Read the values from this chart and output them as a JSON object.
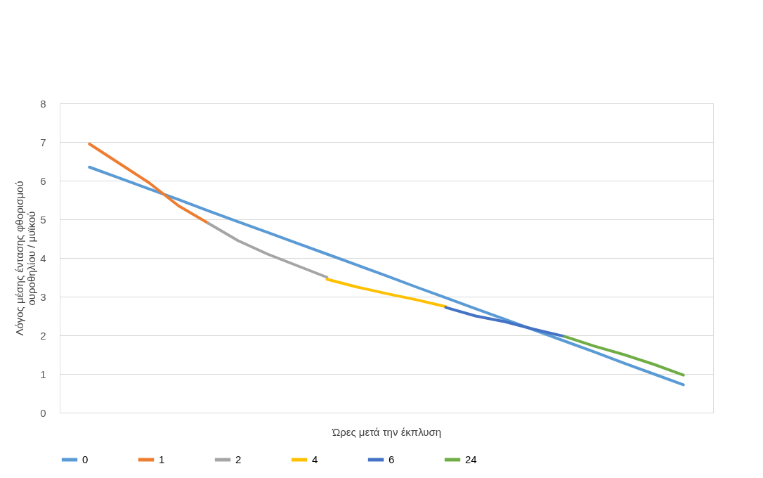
{
  "chart_data": {
    "type": "line",
    "xlabel": "Ώρες μετά την έκπλυση",
    "ylabel": "Λόγος μέσης έντασης φθορισμού\nουροθηλίου / μυϊκού",
    "categories": [
      null,
      null,
      null,
      null,
      null,
      null,
      null,
      null,
      null,
      null,
      null,
      null,
      null,
      null,
      null,
      null,
      null,
      null,
      null,
      null,
      null
    ],
    "series": [
      {
        "name": "0",
        "color": "#5b9bd5",
        "values": [
          6.35,
          6.07,
          5.79,
          5.51,
          5.22,
          4.94,
          4.66,
          4.38,
          4.1,
          3.82,
          3.54,
          3.25,
          2.97,
          2.69,
          2.41,
          2.13,
          1.85,
          1.57,
          1.28,
          1.0,
          0.72
        ]
      },
      {
        "name": "1",
        "color": "#ed7d31",
        "values": [
          6.95,
          6.45,
          5.95,
          5.35,
          4.9,
          null,
          null,
          null,
          null,
          null,
          null,
          null,
          null,
          null,
          null,
          null,
          null,
          null,
          null,
          null,
          null
        ]
      },
      {
        "name": "2",
        "color": "#a5a5a5",
        "values": [
          null,
          null,
          null,
          null,
          4.9,
          4.45,
          4.1,
          3.8,
          3.5,
          null,
          null,
          null,
          null,
          null,
          null,
          null,
          null,
          null,
          null,
          null,
          null
        ]
      },
      {
        "name": "4",
        "color": "#ffc000",
        "values": [
          null,
          null,
          null,
          null,
          null,
          null,
          null,
          null,
          3.45,
          3.25,
          3.08,
          2.92,
          2.74,
          null,
          null,
          null,
          null,
          null,
          null,
          null,
          null
        ]
      },
      {
        "name": "6",
        "color": "#4472c4",
        "values": [
          null,
          null,
          null,
          null,
          null,
          null,
          null,
          null,
          null,
          null,
          null,
          null,
          2.72,
          2.5,
          2.35,
          2.15,
          1.97,
          null,
          null,
          null,
          null
        ]
      },
      {
        "name": "24",
        "color": "#70ad47",
        "values": [
          null,
          null,
          null,
          null,
          null,
          null,
          null,
          null,
          null,
          null,
          null,
          null,
          null,
          null,
          null,
          null,
          1.97,
          1.72,
          1.5,
          1.25,
          0.97
        ]
      }
    ],
    "ylim": [
      0,
      8
    ],
    "yticks": [
      0,
      1,
      2,
      3,
      4,
      5,
      6,
      7,
      8
    ],
    "grid": "y",
    "legend": "bottom"
  }
}
